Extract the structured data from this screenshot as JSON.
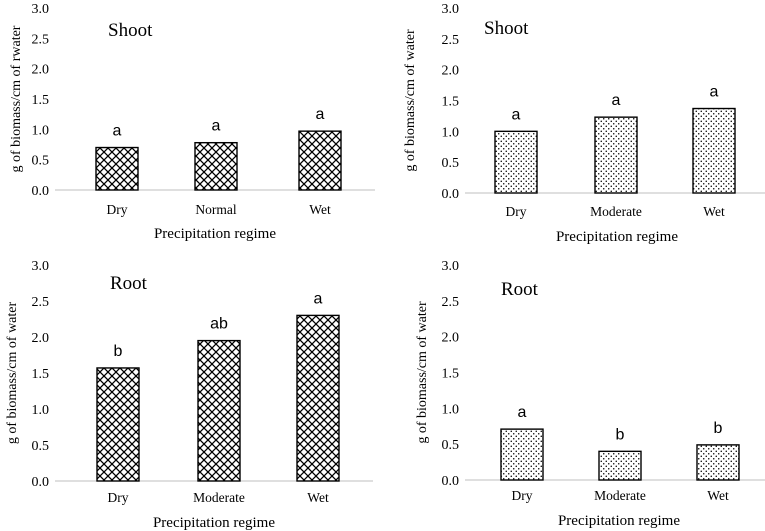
{
  "chart_data": [
    {
      "type": "bar",
      "title": "Shoot",
      "xlabel": "Precipitation regime",
      "ylabel": "g of biomass/cm of rwater",
      "ylim": [
        0,
        3.0
      ],
      "yticks": [
        "0.0",
        "0.5",
        "1.0",
        "1.5",
        "2.0",
        "2.5",
        "3.0"
      ],
      "categories": [
        "Dry",
        "Normal",
        "Wet"
      ],
      "values": [
        0.7,
        0.78,
        0.97
      ],
      "significance": [
        "a",
        "a",
        "a"
      ],
      "pattern": "crosshatch",
      "grid": false
    },
    {
      "type": "bar",
      "title": "Shoot",
      "xlabel": "Precipitation regime",
      "ylabel": "g of biomass/cm of water",
      "ylim": [
        0,
        3.0
      ],
      "yticks": [
        "0.0",
        "0.5",
        "1.0",
        "1.5",
        "2.0",
        "2.5",
        "3.0"
      ],
      "categories": [
        "Dry",
        "Moderate",
        "Wet"
      ],
      "values": [
        1.0,
        1.23,
        1.37
      ],
      "significance": [
        "a",
        "a",
        "a"
      ],
      "pattern": "dots",
      "grid": false
    },
    {
      "type": "bar",
      "title": "Root",
      "xlabel": "Precipitation regime",
      "ylabel": "g of biomass/cm of water",
      "ylim": [
        0,
        3.0
      ],
      "yticks": [
        "0.0",
        "0.5",
        "1.0",
        "1.5",
        "2.0",
        "2.5",
        "3.0"
      ],
      "categories": [
        "Dry",
        "Moderate",
        "Wet"
      ],
      "values": [
        1.57,
        1.95,
        2.3
      ],
      "significance": [
        "b",
        "ab",
        "a"
      ],
      "pattern": "crosshatch",
      "grid": false
    },
    {
      "type": "bar",
      "title": "Root",
      "xlabel": "Precipitation regime",
      "ylabel": "g of biomass/cm of water",
      "ylim": [
        0,
        3.0
      ],
      "yticks": [
        "0.0",
        "0.5",
        "1.0",
        "1.5",
        "2.0",
        "2.5",
        "3.0"
      ],
      "categories": [
        "Dry",
        "Moderate",
        "Wet"
      ],
      "values": [
        0.71,
        0.4,
        0.49
      ],
      "significance": [
        "a",
        "b",
        "b"
      ],
      "pattern": "dots",
      "grid": false
    }
  ]
}
